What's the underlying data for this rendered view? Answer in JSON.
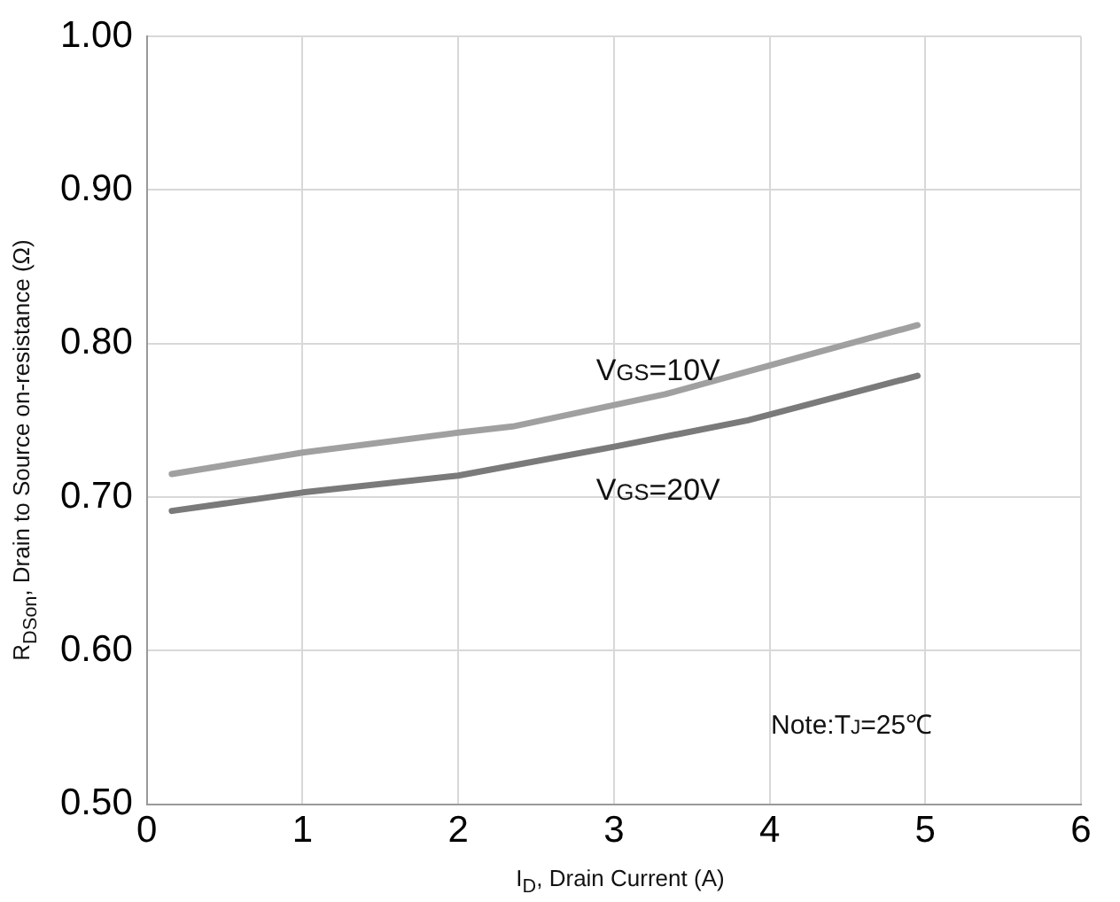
{
  "chart_data": {
    "type": "line",
    "xlabel": "I$_{D}$, Drain Current (A)",
    "ylabel": "R$_{DSon}$, Drain to Source on-resistance (Ω)",
    "series": [
      {
        "name": "V$_{GS}$=10V",
        "color": "#a0a0a0",
        "x": [
          0.16,
          1,
          2,
          2.35,
          3.33,
          4.26,
          4.95
        ],
        "values": [
          0.715,
          0.729,
          0.742,
          0.746,
          0.767,
          0.793,
          0.812
        ]
      },
      {
        "name": "V$_{GS}$=20V",
        "color": "#7a7a7a",
        "x": [
          0.16,
          1,
          2,
          3.01,
          3.86,
          4.95
        ],
        "values": [
          0.691,
          0.703,
          0.714,
          0.733,
          0.75,
          0.779
        ]
      }
    ],
    "xlim": [
      0,
      6
    ],
    "xticks": [
      0,
      1,
      2,
      3,
      4,
      5,
      6
    ],
    "ylim": [
      0.5,
      1.0
    ],
    "yticks": [
      {
        "value": 0.5,
        "label": "0.50"
      },
      {
        "value": 0.6,
        "label": "0.60"
      },
      {
        "value": 0.7,
        "label": "0.70"
      },
      {
        "value": 0.8,
        "label": "0.80"
      },
      {
        "value": 0.9,
        "label": "0.90"
      },
      {
        "value": 1.0,
        "label": "1.00"
      }
    ],
    "annotations": [
      "Note:T$_{J}$=25℃"
    ],
    "grid": true,
    "legend": false,
    "marker": "none",
    "line_style": "solid"
  }
}
